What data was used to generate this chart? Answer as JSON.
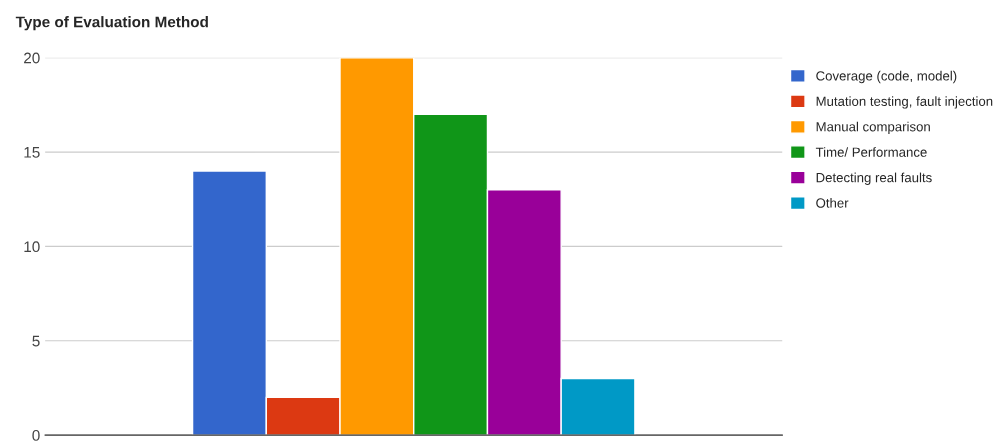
{
  "chart_data": {
    "type": "bar",
    "title": "Type of Evaluation Method",
    "categories": [
      null
    ],
    "series": [
      {
        "name": "Coverage (code, model)",
        "color": "#3366cc",
        "values": [
          14
        ]
      },
      {
        "name": "Mutation testing, fault injection",
        "color": "#dc3912",
        "values": [
          2
        ]
      },
      {
        "name": "Manual comparison",
        "color": "#ff9900",
        "values": [
          20
        ]
      },
      {
        "name": "Time/ Performance",
        "color": "#109618",
        "values": [
          17
        ]
      },
      {
        "name": "Detecting real faults",
        "color": "#990099",
        "values": [
          13
        ]
      },
      {
        "name": "Other",
        "color": "#0099c6",
        "values": [
          3
        ]
      }
    ],
    "ylim": [
      0,
      20
    ],
    "yticks": [
      0,
      5,
      10,
      15,
      20
    ],
    "grid": "y",
    "legend": "right"
  }
}
